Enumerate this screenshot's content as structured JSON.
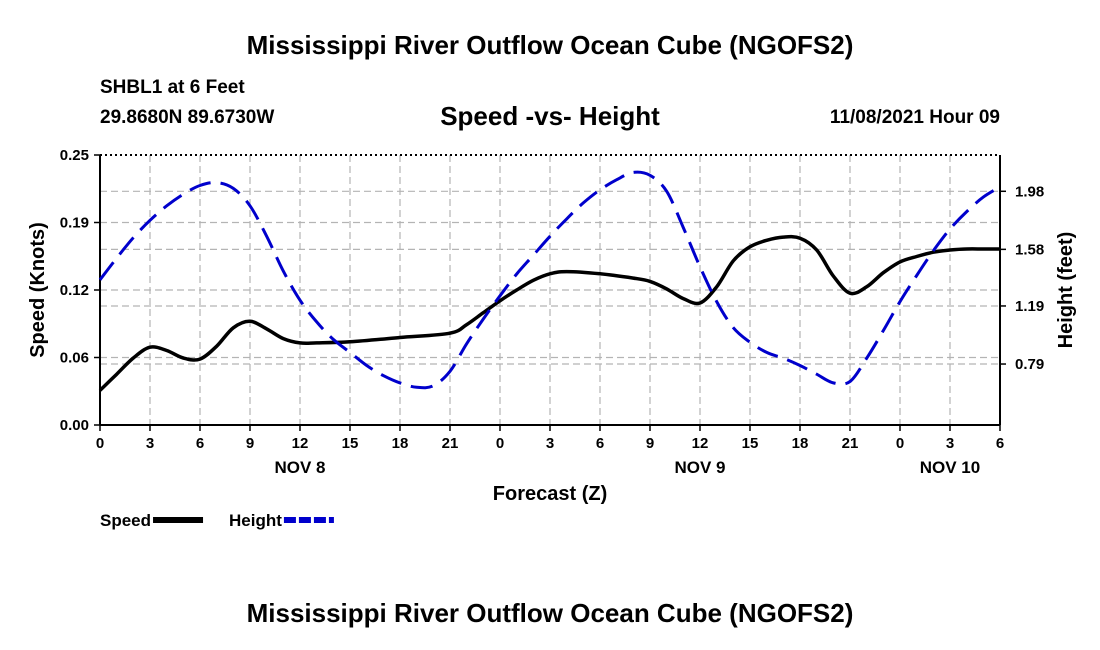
{
  "header": {
    "title": "Mississippi River Outflow Ocean Cube (NGOFS2)",
    "station": "SHBL1 at 6 Feet",
    "coords": "29.8680N  89.6730W",
    "subtitle": "Speed -vs- Height",
    "datetime": "11/08/2021 Hour 09"
  },
  "footer": {
    "title": "Mississippi River Outflow Ocean Cube (NGOFS2)"
  },
  "colors": {
    "speed": "#000000",
    "height": "#0000cc",
    "grid": "#b4b4b4"
  },
  "chart_data": {
    "type": "line",
    "title": "Speed -vs- Height",
    "xlabel": "Forecast (Z)",
    "ylabel": "Speed (Knots)",
    "y2label": "Height (feet)",
    "grid": true,
    "x_range": [
      0,
      54
    ],
    "x_ticks": [
      {
        "x": 0,
        "label": "0"
      },
      {
        "x": 3,
        "label": "3"
      },
      {
        "x": 6,
        "label": "6"
      },
      {
        "x": 9,
        "label": "9"
      },
      {
        "x": 12,
        "label": "12"
      },
      {
        "x": 15,
        "label": "15"
      },
      {
        "x": 18,
        "label": "18"
      },
      {
        "x": 21,
        "label": "21"
      },
      {
        "x": 24,
        "label": "0"
      },
      {
        "x": 27,
        "label": "3"
      },
      {
        "x": 30,
        "label": "6"
      },
      {
        "x": 33,
        "label": "9"
      },
      {
        "x": 36,
        "label": "12"
      },
      {
        "x": 39,
        "label": "15"
      },
      {
        "x": 42,
        "label": "18"
      },
      {
        "x": 45,
        "label": "21"
      },
      {
        "x": 48,
        "label": "0"
      },
      {
        "x": 51,
        "label": "3"
      },
      {
        "x": 54,
        "label": "6"
      }
    ],
    "day_labels": [
      {
        "x": 12,
        "label": "NOV 8"
      },
      {
        "x": 36,
        "label": "NOV 9"
      },
      {
        "x": 51,
        "label": "NOV 10"
      }
    ],
    "ylim": [
      0,
      0.25
    ],
    "y_ticks": [
      {
        "v": 0.0,
        "label": "0.00"
      },
      {
        "v": 0.0625,
        "label": "0.06"
      },
      {
        "v": 0.125,
        "label": "0.12"
      },
      {
        "v": 0.1875,
        "label": "0.19"
      },
      {
        "v": 0.25,
        "label": "0.25"
      }
    ],
    "y2lim": [
      0.37,
      2.23
    ],
    "y2_ticks": [
      {
        "v": 0.79,
        "label": "0.79"
      },
      {
        "v": 1.19,
        "label": "1.19"
      },
      {
        "v": 1.58,
        "label": "1.58"
      },
      {
        "v": 1.98,
        "label": "1.98"
      }
    ],
    "series": [
      {
        "name": "Speed",
        "axis": "left",
        "style": "solid",
        "points": [
          [
            0,
            0.032
          ],
          [
            1,
            0.047
          ],
          [
            2,
            0.062
          ],
          [
            3,
            0.072
          ],
          [
            4,
            0.069
          ],
          [
            5,
            0.062
          ],
          [
            6,
            0.061
          ],
          [
            7,
            0.073
          ],
          [
            8,
            0.09
          ],
          [
            9,
            0.096
          ],
          [
            10,
            0.089
          ],
          [
            11,
            0.08
          ],
          [
            12,
            0.076
          ],
          [
            13,
            0.076
          ],
          [
            15,
            0.077
          ],
          [
            18,
            0.081
          ],
          [
            21,
            0.085
          ],
          [
            22,
            0.093
          ],
          [
            23,
            0.104
          ],
          [
            24,
            0.115
          ],
          [
            25,
            0.125
          ],
          [
            26,
            0.134
          ],
          [
            27,
            0.14
          ],
          [
            28,
            0.142
          ],
          [
            30,
            0.14
          ],
          [
            32,
            0.136
          ],
          [
            33,
            0.133
          ],
          [
            34,
            0.126
          ],
          [
            35,
            0.117
          ],
          [
            36,
            0.113
          ],
          [
            37,
            0.128
          ],
          [
            38,
            0.152
          ],
          [
            39,
            0.165
          ],
          [
            40,
            0.171
          ],
          [
            41,
            0.174
          ],
          [
            42,
            0.173
          ],
          [
            43,
            0.162
          ],
          [
            44,
            0.138
          ],
          [
            45,
            0.122
          ],
          [
            46,
            0.128
          ],
          [
            47,
            0.141
          ],
          [
            48,
            0.151
          ],
          [
            49,
            0.156
          ],
          [
            50,
            0.16
          ],
          [
            51,
            0.162
          ],
          [
            52,
            0.163
          ],
          [
            53,
            0.163
          ],
          [
            54,
            0.163
          ]
        ]
      },
      {
        "name": "Height",
        "axis": "right",
        "style": "dashed",
        "points": [
          [
            0,
            1.37
          ],
          [
            1,
            1.52
          ],
          [
            2,
            1.66
          ],
          [
            3,
            1.78
          ],
          [
            4,
            1.88
          ],
          [
            5,
            1.96
          ],
          [
            6,
            2.02
          ],
          [
            7,
            2.04
          ],
          [
            8,
            2.0
          ],
          [
            9,
            1.88
          ],
          [
            10,
            1.67
          ],
          [
            11,
            1.43
          ],
          [
            12,
            1.23
          ],
          [
            13,
            1.08
          ],
          [
            14,
            0.96
          ],
          [
            15,
            0.87
          ],
          [
            16,
            0.78
          ],
          [
            17,
            0.71
          ],
          [
            18,
            0.66
          ],
          [
            19,
            0.63
          ],
          [
            20,
            0.64
          ],
          [
            21,
            0.74
          ],
          [
            22,
            0.93
          ],
          [
            23,
            1.1
          ],
          [
            24,
            1.26
          ],
          [
            25,
            1.41
          ],
          [
            26,
            1.54
          ],
          [
            27,
            1.67
          ],
          [
            28,
            1.79
          ],
          [
            29,
            1.9
          ],
          [
            30,
            1.99
          ],
          [
            31,
            2.06
          ],
          [
            32,
            2.11
          ],
          [
            33,
            2.09
          ],
          [
            34,
            1.98
          ],
          [
            35,
            1.73
          ],
          [
            36,
            1.46
          ],
          [
            37,
            1.22
          ],
          [
            38,
            1.04
          ],
          [
            39,
            0.94
          ],
          [
            40,
            0.87
          ],
          [
            41,
            0.83
          ],
          [
            42,
            0.78
          ],
          [
            43,
            0.72
          ],
          [
            44,
            0.66
          ],
          [
            45,
            0.67
          ],
          [
            46,
            0.83
          ],
          [
            47,
            1.02
          ],
          [
            48,
            1.22
          ],
          [
            49,
            1.4
          ],
          [
            50,
            1.57
          ],
          [
            51,
            1.72
          ],
          [
            52,
            1.84
          ],
          [
            53,
            1.94
          ],
          [
            54,
            2.01
          ]
        ]
      }
    ],
    "legend": [
      {
        "label": "Speed",
        "series": "Speed"
      },
      {
        "label": "Height",
        "series": "Height"
      }
    ],
    "legend_position": "bottom-left"
  }
}
